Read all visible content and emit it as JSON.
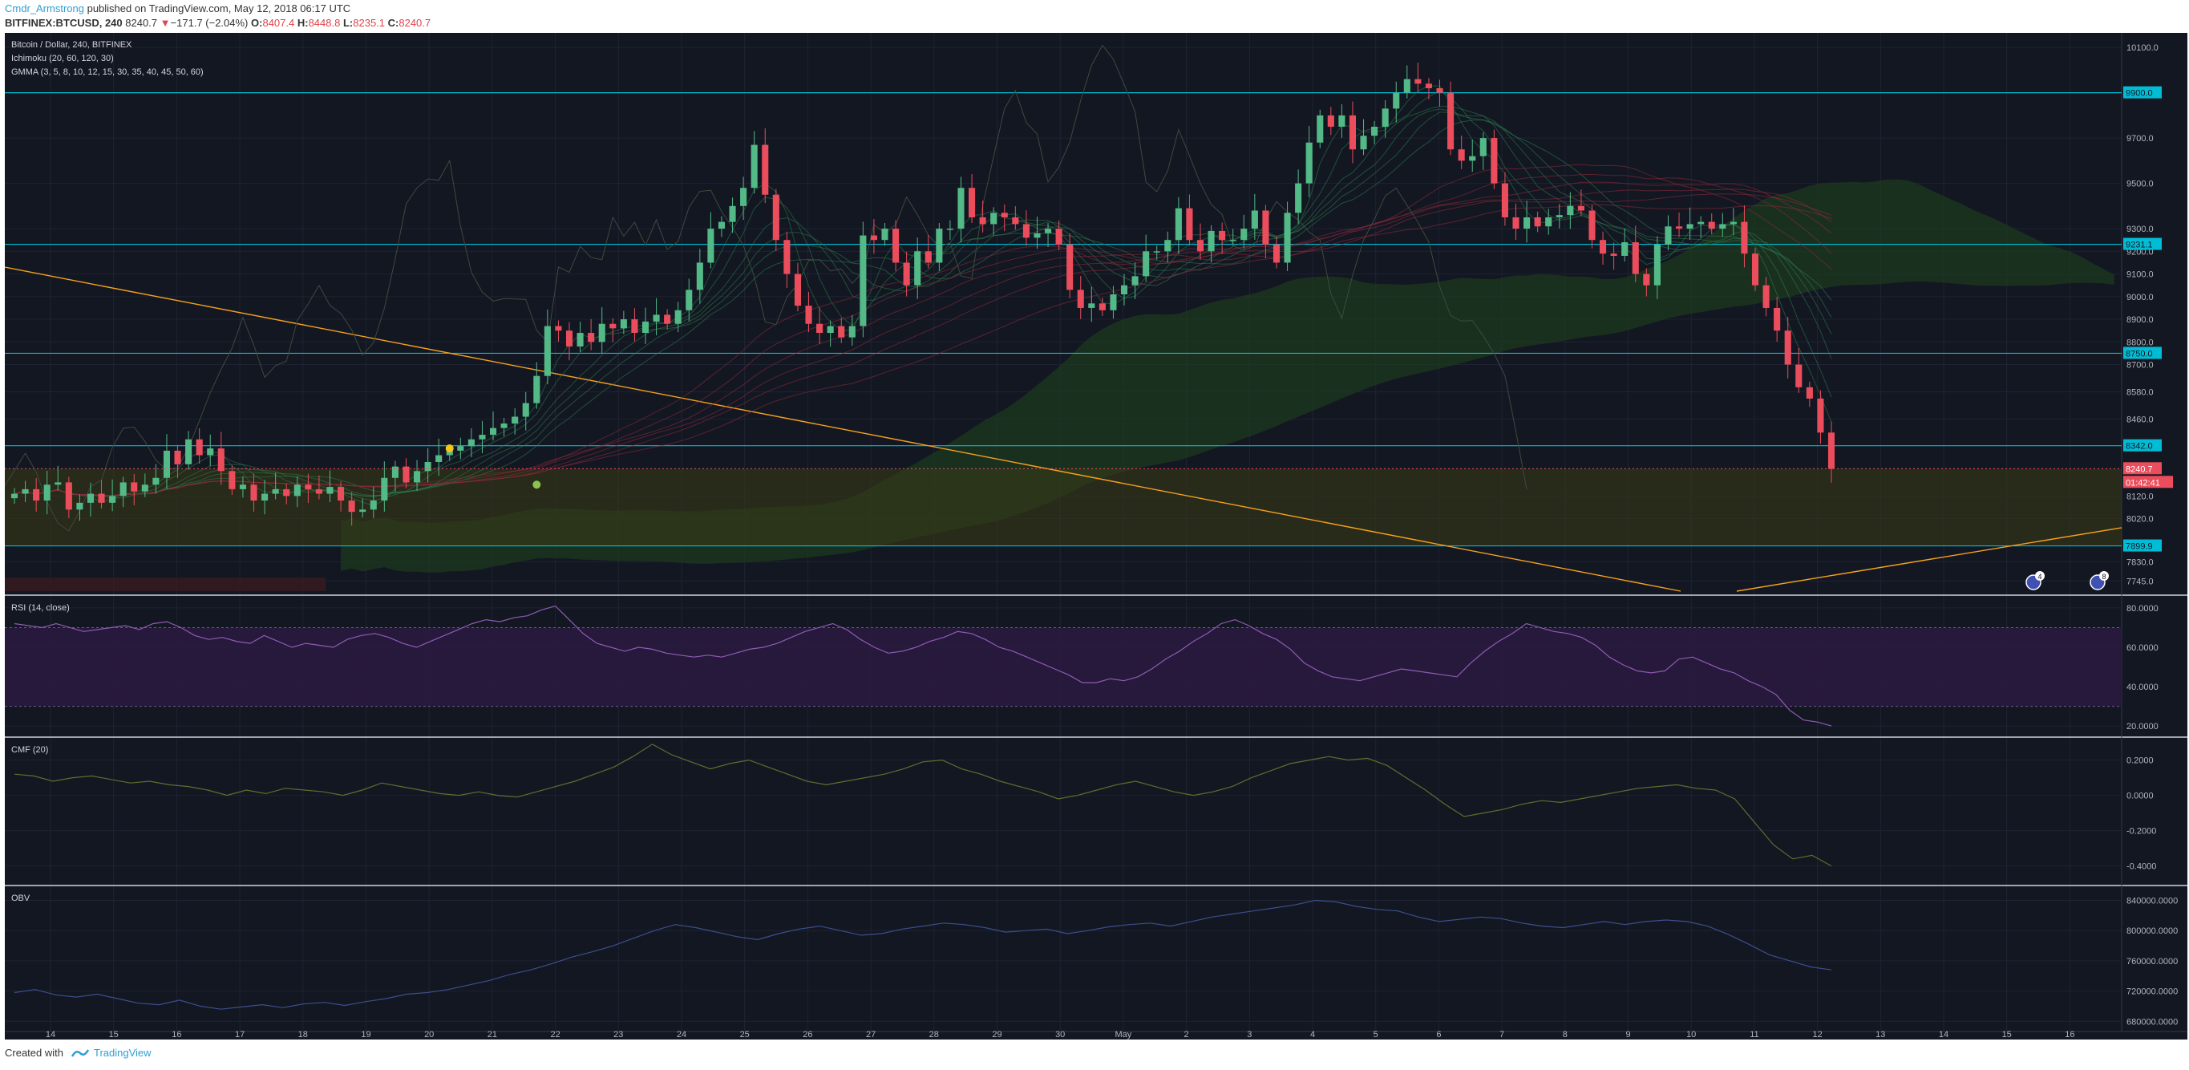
{
  "header": {
    "author": "Cmdr_Armstrong",
    "published": "published on TradingView.com, May 12, 2018 06:17 UTC",
    "symbol": "BITFINEX:BTCUSD, 240",
    "last": "8240.7",
    "arrow": "▼",
    "change": "−171.7 (−2.04%)",
    "o_label": "O:",
    "o": "8407.4",
    "h_label": "H:",
    "h": "8448.8",
    "l_label": "L:",
    "l": "8235.1",
    "c_label": "C:",
    "c": "8240.7"
  },
  "footer": {
    "created_with": "Created with",
    "brand": "TradingView"
  },
  "colors": {
    "background": "#131722",
    "up": "#53b987",
    "down": "#eb4d5c",
    "hline": "#00bcd4",
    "trend": "#f7a21b",
    "rsi": "#8e5bb5",
    "cmf": "#5e6e2f",
    "obv": "#3b4f8c",
    "cloud_green": "#1e3a1f",
    "cloud_red": "#3a1a20"
  },
  "chart_data": [
    {
      "type": "candlestick",
      "title": "Bitcoin / Dollar, 240, BITFINEX",
      "indicators": [
        "Ichimoku (20, 60, 120, 30)",
        "GMMA (3, 5, 8, 10, 12, 15, 30, 35, 40, 45, 50, 60)"
      ],
      "ylim": [
        7700,
        10150
      ],
      "x_ticks": [
        "14",
        "15",
        "16",
        "17",
        "18",
        "19",
        "20",
        "21",
        "22",
        "23",
        "24",
        "25",
        "26",
        "27",
        "28",
        "29",
        "30",
        "May",
        "2",
        "3",
        "4",
        "5",
        "6",
        "7",
        "8",
        "9",
        "10",
        "11",
        "12",
        "13",
        "14",
        "15",
        "16"
      ],
      "y_ticks": [
        "10100.0",
        "9700.0",
        "9500.0",
        "9300.0",
        "9200.0",
        "9100.0",
        "9000.0",
        "8900.0",
        "8800.0",
        "8700.0",
        "8580.0",
        "8460.0",
        "8120.0",
        "8020.0",
        "7830.0",
        "7745.0"
      ],
      "horizontal_levels": [
        "9900.0",
        "9231.1",
        "8750.0",
        "8342.0",
        "7899.9"
      ],
      "last_price": "8240.7",
      "countdown": "01:42:41",
      "event_badges": [
        "4",
        "8"
      ],
      "closes": [
        8130,
        8150,
        8100,
        8170,
        8180,
        8060,
        8090,
        8130,
        8090,
        8120,
        8180,
        8140,
        8170,
        8200,
        8320,
        8260,
        8370,
        8300,
        8330,
        8230,
        8150,
        8170,
        8100,
        8130,
        8150,
        8120,
        8170,
        8150,
        8130,
        8160,
        8100,
        8050,
        8060,
        8100,
        8200,
        8250,
        8180,
        8230,
        8270,
        8300,
        8320,
        8340,
        8370,
        8390,
        8420,
        8440,
        8470,
        8530,
        8650,
        8870,
        8850,
        8780,
        8840,
        8800,
        8880,
        8860,
        8900,
        8840,
        8890,
        8920,
        8880,
        8940,
        9030,
        9150,
        9300,
        9330,
        9400,
        9480,
        9670,
        9450,
        9250,
        9100,
        8960,
        8880,
        8840,
        8870,
        8820,
        8870,
        9270,
        9250,
        9300,
        9150,
        9050,
        9200,
        9150,
        9300,
        9300,
        9480,
        9350,
        9320,
        9370,
        9350,
        9320,
        9260,
        9280,
        9300,
        9230,
        9030,
        8950,
        8970,
        8940,
        9010,
        9050,
        9090,
        9200,
        9200,
        9250,
        9390,
        9250,
        9200,
        9290,
        9250,
        9250,
        9300,
        9380,
        9230,
        9150,
        9370,
        9500,
        9680,
        9800,
        9750,
        9800,
        9650,
        9710,
        9750,
        9830,
        9900,
        9960,
        9940,
        9920,
        9900,
        9650,
        9600,
        9620,
        9700,
        9500,
        9350,
        9300,
        9350,
        9310,
        9350,
        9360,
        9400,
        9380,
        9250,
        9190,
        9180,
        9240,
        9100,
        9050,
        9230,
        9310,
        9300,
        9320,
        9330,
        9300,
        9320,
        9330,
        9190,
        9050,
        8950,
        8850,
        8700,
        8600,
        8550,
        8400,
        8240
      ]
    },
    {
      "type": "line",
      "title": "RSI (14, close)",
      "ylim": [
        18,
        82
      ],
      "y_ticks": [
        "80.0000",
        "60.0000",
        "40.0000",
        "20.0000"
      ],
      "bands": [
        70,
        30
      ],
      "values": [
        72,
        71,
        70,
        72,
        70,
        68,
        69,
        70,
        71,
        69,
        72,
        73,
        70,
        66,
        64,
        65,
        63,
        62,
        66,
        63,
        60,
        62,
        61,
        60,
        64,
        66,
        67,
        65,
        62,
        60,
        63,
        66,
        69,
        72,
        74,
        73,
        75,
        76,
        79,
        81,
        74,
        67,
        62,
        60,
        58,
        60,
        59,
        57,
        56,
        55,
        56,
        55,
        57,
        59,
        60,
        62,
        65,
        68,
        70,
        72,
        69,
        64,
        60,
        57,
        58,
        60,
        63,
        65,
        68,
        67,
        64,
        60,
        58,
        55,
        52,
        49,
        46,
        42,
        42,
        44,
        43,
        45,
        49,
        54,
        58,
        63,
        67,
        72,
        74,
        71,
        67,
        64,
        59,
        52,
        48,
        45,
        44,
        43,
        45,
        47,
        49,
        48,
        47,
        46,
        45,
        52,
        58,
        63,
        67,
        72,
        70,
        68,
        67,
        65,
        61,
        55,
        51,
        48,
        47,
        48,
        54,
        55,
        52,
        49,
        47,
        43,
        40,
        36,
        28,
        23,
        22,
        20
      ]
    },
    {
      "type": "line",
      "title": "CMF (20)",
      "ylim": [
        -0.47,
        0.28
      ],
      "y_ticks": [
        "0.2000",
        "0.0000",
        "-0.2000",
        "-0.4000"
      ],
      "values": [
        0.12,
        0.11,
        0.08,
        0.1,
        0.11,
        0.09,
        0.07,
        0.08,
        0.06,
        0.05,
        0.03,
        0,
        0.03,
        0.01,
        0.04,
        0.03,
        0.02,
        0.0,
        0.03,
        0.07,
        0.05,
        0.03,
        0.01,
        0.0,
        0.02,
        0.0,
        -0.01,
        0.02,
        0.05,
        0.08,
        0.12,
        0.16,
        0.22,
        0.29,
        0.23,
        0.19,
        0.15,
        0.18,
        0.2,
        0.16,
        0.12,
        0.08,
        0.06,
        0.08,
        0.1,
        0.12,
        0.15,
        0.19,
        0.2,
        0.15,
        0.12,
        0.08,
        0.05,
        0.02,
        -0.02,
        0.0,
        0.03,
        0.06,
        0.08,
        0.05,
        0.02,
        0.0,
        0.02,
        0.05,
        0.1,
        0.14,
        0.18,
        0.2,
        0.22,
        0.2,
        0.21,
        0.17,
        0.1,
        0.03,
        -0.05,
        -0.12,
        -0.1,
        -0.08,
        -0.05,
        -0.03,
        -0.04,
        -0.02,
        0.0,
        0.02,
        0.04,
        0.05,
        0.06,
        0.04,
        0.03,
        -0.02,
        -0.15,
        -0.28,
        -0.36,
        -0.34,
        -0.4
      ]
    },
    {
      "type": "line",
      "title": "OBV",
      "ylim": [
        675000,
        848000
      ],
      "y_ticks": [
        "840000.0000",
        "800000.0000",
        "760000.0000",
        "720000.0000",
        "680000.0000"
      ],
      "values": [
        718000,
        722000,
        715000,
        712000,
        716000,
        710000,
        704000,
        702000,
        708000,
        700000,
        696000,
        699000,
        702000,
        698000,
        703000,
        705000,
        701000,
        706000,
        710000,
        716000,
        718000,
        722000,
        728000,
        734000,
        742000,
        748000,
        756000,
        765000,
        772000,
        780000,
        790000,
        800000,
        808000,
        804000,
        798000,
        792000,
        788000,
        796000,
        802000,
        806000,
        800000,
        794000,
        796000,
        802000,
        806000,
        810000,
        808000,
        804000,
        798000,
        800000,
        802000,
        796000,
        800000,
        805000,
        808000,
        810000,
        806000,
        812000,
        818000,
        822000,
        826000,
        830000,
        834000,
        840000,
        838000,
        832000,
        828000,
        826000,
        818000,
        812000,
        815000,
        818000,
        816000,
        810000,
        806000,
        804000,
        808000,
        812000,
        808000,
        812000,
        814000,
        812000,
        806000,
        795000,
        782000,
        768000,
        760000,
        752000,
        748000
      ]
    }
  ]
}
